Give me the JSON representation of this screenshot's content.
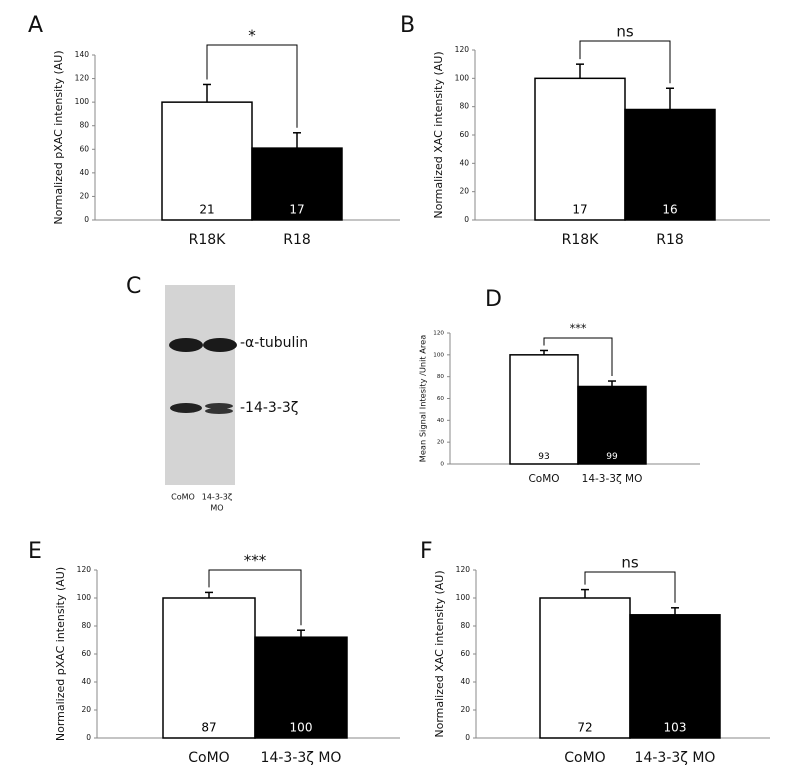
{
  "chart_data": [
    {
      "type": "bar",
      "panel": "A",
      "ylabel": "Normalized pXAC intensity (AU)",
      "categories": [
        "R18K",
        "R18"
      ],
      "values": [
        100,
        61
      ],
      "errors": [
        15,
        13
      ],
      "n_labels": [
        21,
        17
      ],
      "bar_colors": [
        "#ffffff",
        "#000000"
      ],
      "n_label_colors": [
        "#000000",
        "#ffffff"
      ],
      "significance": "*",
      "ylim": [
        0,
        140
      ],
      "yticks": [
        0,
        20,
        40,
        60,
        80,
        100,
        120,
        140
      ]
    },
    {
      "type": "bar",
      "panel": "B",
      "ylabel": "Normalized XAC intensity (AU)",
      "categories": [
        "R18K",
        "R18"
      ],
      "values": [
        100,
        78
      ],
      "errors": [
        10,
        15
      ],
      "n_labels": [
        17,
        16
      ],
      "bar_colors": [
        "#ffffff",
        "#000000"
      ],
      "n_label_colors": [
        "#000000",
        "#ffffff"
      ],
      "significance": "ns",
      "ylim": [
        0,
        120
      ],
      "yticks": [
        0,
        20,
        40,
        60,
        80,
        100,
        120
      ]
    },
    {
      "type": "bar",
      "panel": "D",
      "ylabel": "Mean Signal Intesity /Unit Area",
      "categories": [
        "CoMO",
        "14-3-3ζ MO"
      ],
      "values": [
        100,
        71
      ],
      "errors": [
        4,
        5
      ],
      "n_labels": [
        93,
        99
      ],
      "bar_colors": [
        "#ffffff",
        "#000000"
      ],
      "n_label_colors": [
        "#000000",
        "#ffffff"
      ],
      "significance": "***",
      "ylim": [
        0,
        120
      ],
      "yticks": [
        0,
        20,
        40,
        60,
        80,
        100,
        120
      ]
    },
    {
      "type": "bar",
      "panel": "E",
      "ylabel": "Normalized pXAC intensity (AU)",
      "categories": [
        "CoMO",
        "14-3-3ζ MO"
      ],
      "values": [
        100,
        72
      ],
      "errors": [
        4,
        5
      ],
      "n_labels": [
        87,
        100
      ],
      "bar_colors": [
        "#ffffff",
        "#000000"
      ],
      "n_label_colors": [
        "#000000",
        "#ffffff"
      ],
      "significance": "***",
      "ylim": [
        0,
        120
      ],
      "yticks": [
        0,
        20,
        40,
        60,
        80,
        100,
        120
      ]
    },
    {
      "type": "bar",
      "panel": "F",
      "ylabel": "Normalized XAC intensity (AU)",
      "categories": [
        "CoMO",
        "14-3-3ζ MO"
      ],
      "values": [
        100,
        88
      ],
      "errors": [
        6,
        5
      ],
      "n_labels": [
        72,
        103
      ],
      "bar_colors": [
        "#ffffff",
        "#000000"
      ],
      "n_label_colors": [
        "#000000",
        "#ffffff"
      ],
      "significance": "ns",
      "ylim": [
        0,
        120
      ],
      "yticks": [
        0,
        20,
        40,
        60,
        80,
        100,
        120
      ]
    }
  ],
  "blot": {
    "panel": "C",
    "bands": [
      "-α-tubulin",
      "-14-3-3ζ"
    ],
    "lanes": [
      [
        "CoMO"
      ],
      [
        "14-3-3ζ",
        "MO"
      ]
    ]
  }
}
